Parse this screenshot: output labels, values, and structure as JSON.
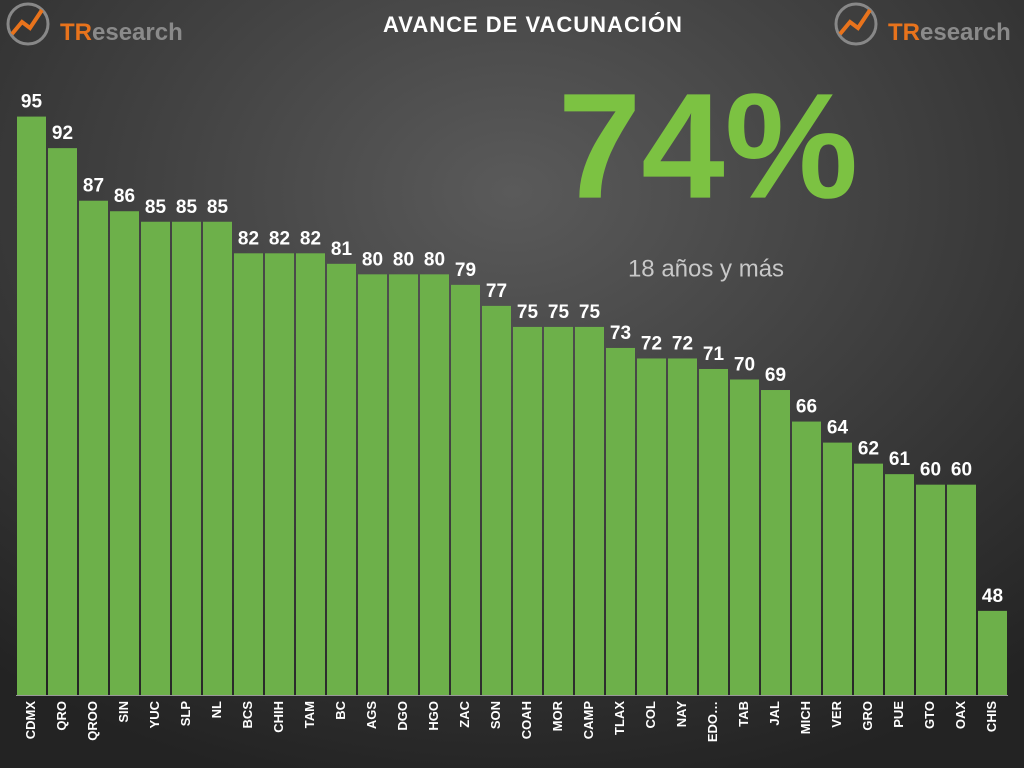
{
  "chart_data": {
    "type": "bar",
    "title": "AVANCE DE VACUNACIÓN",
    "highlight": "74%",
    "highlight_color": "#7cc242",
    "subtitle": "18 años y más",
    "logo": {
      "prefix": "TR",
      "suffix": "esearch"
    },
    "categories": [
      "CDMX",
      "QRO",
      "QROO",
      "SIN",
      "YUC",
      "SLP",
      "NL",
      "BCS",
      "CHIH",
      "TAM",
      "BC",
      "AGS",
      "DGO",
      "HGO",
      "ZAC",
      "SON",
      "COAH",
      "MOR",
      "CAMP",
      "TLAX",
      "COL",
      "NAY",
      "EDO…",
      "TAB",
      "JAL",
      "MICH",
      "VER",
      "GRO",
      "PUE",
      "GTO",
      "OAX",
      "CHIS"
    ],
    "values": [
      95,
      92,
      87,
      86,
      85,
      85,
      85,
      82,
      82,
      82,
      81,
      80,
      80,
      80,
      79,
      77,
      75,
      75,
      75,
      73,
      72,
      72,
      71,
      70,
      69,
      66,
      64,
      62,
      61,
      60,
      60,
      48
    ],
    "color": "#6db04a",
    "ylim": [
      40,
      100
    ]
  }
}
